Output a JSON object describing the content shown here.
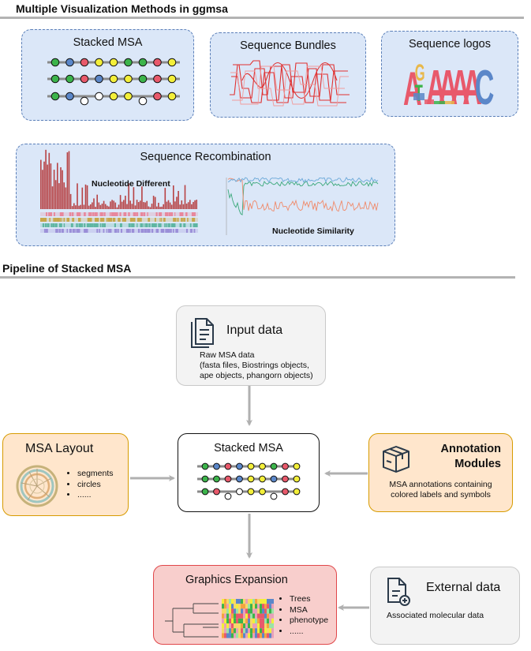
{
  "sections": {
    "methods_title": "Multiple Visualization Methods in ggmsa",
    "pipeline_title": "Pipeline of Stacked MSA"
  },
  "methods": {
    "stacked_msa": "Stacked MSA",
    "sequence_bundles": "Sequence Bundles",
    "sequence_logos": "Sequence logos",
    "logo_letters": [
      "A",
      "G",
      "T",
      "A",
      "A",
      "A",
      "A",
      "C"
    ],
    "sequence_recombination": "Sequence Recombination",
    "nucleotide_different": "Nucleotide Different",
    "nucleotide_similarity": "Nucleotide Similarity"
  },
  "pipeline": {
    "input": {
      "title": "Input data",
      "lines": [
        "Raw MSA data",
        "(fasta files, Biostrings objects,",
        "ape objects, phangorn objects)"
      ]
    },
    "layout": {
      "title": "MSA Layout",
      "items": [
        "segments",
        "circles",
        "......"
      ]
    },
    "stacked": {
      "title": "Stacked MSA"
    },
    "annotation": {
      "title_line1": "Annotation",
      "title_line2": "Modules",
      "lines": [
        "MSA annotations containing",
        "colored labels and symbols"
      ]
    },
    "graphics": {
      "title": "Graphics Expansion",
      "items": [
        "Trees",
        "MSA",
        "phenotype",
        "......"
      ]
    },
    "external": {
      "title": "External data",
      "desc": "Associated molecular data"
    }
  },
  "colors": {
    "dashed_box_fill": "#dbe7f8",
    "dashed_box_border": "#5b7fb8",
    "input_fill": "#f3f3f3",
    "layout_fill": "#ffe6cc",
    "layout_border": "#d79b00",
    "graphics_fill": "#f8cecc",
    "graphics_border": "#e0474a",
    "nucleotide_green": "#3cb44b",
    "nucleotide_blue": "#5b87c9",
    "nucleotide_red": "#e8596b",
    "nucleotide_yellow": "#f3ef3a"
  },
  "icons": [
    "document-stack-icon",
    "boxes-icon",
    "document-add-icon",
    "circular-layout-icon",
    "phylogenetic-tree-icon"
  ]
}
